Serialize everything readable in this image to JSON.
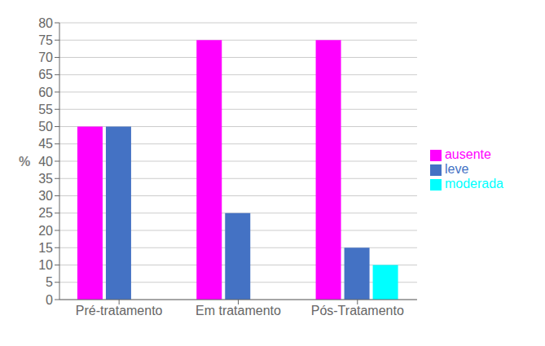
{
  "chart_data": {
    "type": "bar",
    "ylabel": "%",
    "categories": [
      "Pré-tratamento",
      "Em tratamento",
      "Pós-Tratamento"
    ],
    "series": [
      {
        "name": "ausente",
        "color": "#FF00FF",
        "values": [
          50,
          75,
          75
        ]
      },
      {
        "name": "leve",
        "color": "#4472C4",
        "values": [
          50,
          25,
          15
        ]
      },
      {
        "name": "moderada",
        "color": "#00FFFF",
        "values": [
          0,
          0,
          10
        ]
      }
    ],
    "ylim": [
      0,
      80
    ],
    "yticks": [
      0,
      5,
      10,
      15,
      20,
      25,
      30,
      35,
      40,
      45,
      50,
      55,
      60,
      65,
      70,
      75,
      80
    ],
    "grid": true,
    "legend": "right"
  }
}
